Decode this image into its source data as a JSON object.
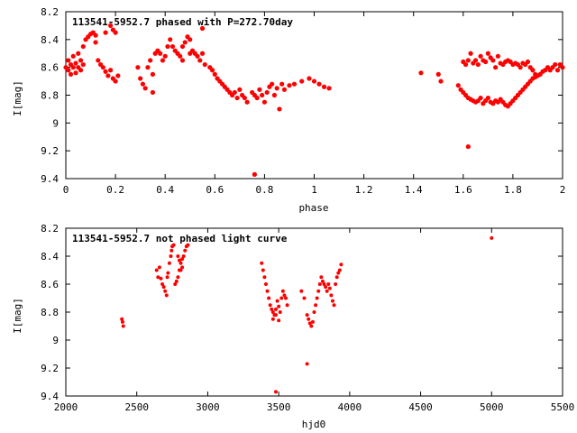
{
  "chart_data": [
    {
      "type": "scatter",
      "title": "113541-5952.7 phased with P=272.70day",
      "xlabel": "phase",
      "ylabel": "I[mag]",
      "xlim": [
        0,
        2
      ],
      "ylim": [
        8.2,
        9.4
      ],
      "y_inverted": true,
      "grid": false,
      "marker_color": "#ff0000",
      "x_ticks": [
        "0",
        "0.2",
        "0.4",
        "0.6",
        "0.8",
        "1",
        "1.2",
        "1.4",
        "1.6",
        "1.8",
        "2"
      ],
      "y_ticks": [
        "8.2",
        "8.4",
        "8.6",
        "8.8",
        "9",
        "9.2",
        "9.4"
      ],
      "x_tick_values": [
        0,
        0.2,
        0.4,
        0.6,
        0.8,
        1.0,
        1.2,
        1.4,
        1.6,
        1.8,
        2.0
      ],
      "y_tick_values": [
        8.2,
        8.4,
        8.6,
        8.8,
        9.0,
        9.2,
        9.4
      ],
      "points": [
        [
          0.0,
          8.6
        ],
        [
          0.01,
          8.62
        ],
        [
          0.01,
          8.55
        ],
        [
          0.02,
          8.58
        ],
        [
          0.02,
          8.65
        ],
        [
          0.03,
          8.6
        ],
        [
          0.03,
          8.52
        ],
        [
          0.04,
          8.57
        ],
        [
          0.04,
          8.64
        ],
        [
          0.05,
          8.6
        ],
        [
          0.05,
          8.5
        ],
        [
          0.06,
          8.55
        ],
        [
          0.06,
          8.62
        ],
        [
          0.07,
          8.58
        ],
        [
          0.07,
          8.45
        ],
        [
          0.08,
          8.4
        ],
        [
          0.09,
          8.38
        ],
        [
          0.1,
          8.36
        ],
        [
          0.11,
          8.35
        ],
        [
          0.12,
          8.37
        ],
        [
          0.12,
          8.42
        ],
        [
          0.13,
          8.55
        ],
        [
          0.14,
          8.58
        ],
        [
          0.15,
          8.6
        ],
        [
          0.16,
          8.63
        ],
        [
          0.17,
          8.66
        ],
        [
          0.18,
          8.62
        ],
        [
          0.19,
          8.68
        ],
        [
          0.2,
          8.7
        ],
        [
          0.21,
          8.66
        ],
        [
          0.16,
          8.35
        ],
        [
          0.18,
          8.3
        ],
        [
          0.19,
          8.33
        ],
        [
          0.2,
          8.35
        ],
        [
          0.29,
          8.6
        ],
        [
          0.3,
          8.68
        ],
        [
          0.31,
          8.72
        ],
        [
          0.32,
          8.75
        ],
        [
          0.33,
          8.6
        ],
        [
          0.34,
          8.55
        ],
        [
          0.35,
          8.65
        ],
        [
          0.35,
          8.78
        ],
        [
          0.36,
          8.5
        ],
        [
          0.37,
          8.48
        ],
        [
          0.38,
          8.5
        ],
        [
          0.39,
          8.55
        ],
        [
          0.4,
          8.52
        ],
        [
          0.41,
          8.45
        ],
        [
          0.42,
          8.4
        ],
        [
          0.43,
          8.45
        ],
        [
          0.44,
          8.48
        ],
        [
          0.45,
          8.5
        ],
        [
          0.46,
          8.52
        ],
        [
          0.47,
          8.55
        ],
        [
          0.47,
          8.45
        ],
        [
          0.48,
          8.42
        ],
        [
          0.49,
          8.38
        ],
        [
          0.5,
          8.4
        ],
        [
          0.5,
          8.5
        ],
        [
          0.51,
          8.48
        ],
        [
          0.52,
          8.5
        ],
        [
          0.53,
          8.52
        ],
        [
          0.54,
          8.55
        ],
        [
          0.55,
          8.5
        ],
        [
          0.55,
          8.32
        ],
        [
          0.56,
          8.58
        ],
        [
          0.58,
          8.6
        ],
        [
          0.59,
          8.62
        ],
        [
          0.6,
          8.65
        ],
        [
          0.61,
          8.68
        ],
        [
          0.62,
          8.7
        ],
        [
          0.63,
          8.72
        ],
        [
          0.64,
          8.74
        ],
        [
          0.65,
          8.76
        ],
        [
          0.66,
          8.78
        ],
        [
          0.67,
          8.8
        ],
        [
          0.68,
          8.78
        ],
        [
          0.69,
          8.82
        ],
        [
          0.7,
          8.76
        ],
        [
          0.71,
          8.8
        ],
        [
          0.72,
          8.82
        ],
        [
          0.73,
          8.85
        ],
        [
          0.75,
          8.78
        ],
        [
          0.76,
          8.8
        ],
        [
          0.77,
          8.82
        ],
        [
          0.78,
          8.76
        ],
        [
          0.79,
          8.8
        ],
        [
          0.8,
          8.85
        ],
        [
          0.81,
          8.78
        ],
        [
          0.82,
          8.74
        ],
        [
          0.83,
          8.72
        ],
        [
          0.84,
          8.8
        ],
        [
          0.85,
          8.75
        ],
        [
          0.86,
          8.9
        ],
        [
          0.87,
          8.72
        ],
        [
          0.88,
          8.76
        ],
        [
          0.9,
          8.73
        ],
        [
          0.92,
          8.72
        ],
        [
          0.95,
          8.7
        ],
        [
          0.98,
          8.68
        ],
        [
          1.0,
          8.7
        ],
        [
          1.02,
          8.72
        ],
        [
          1.04,
          8.74
        ],
        [
          1.06,
          8.75
        ],
        [
          0.76,
          9.37
        ],
        [
          1.43,
          8.64
        ],
        [
          1.5,
          8.65
        ],
        [
          1.51,
          8.7
        ],
        [
          1.62,
          9.17
        ],
        [
          1.6,
          8.56
        ],
        [
          1.61,
          8.58
        ],
        [
          1.62,
          8.55
        ],
        [
          1.63,
          8.5
        ],
        [
          1.64,
          8.57
        ],
        [
          1.65,
          8.55
        ],
        [
          1.66,
          8.58
        ],
        [
          1.67,
          8.52
        ],
        [
          1.68,
          8.55
        ],
        [
          1.69,
          8.56
        ],
        [
          1.7,
          8.5
        ],
        [
          1.71,
          8.53
        ],
        [
          1.72,
          8.55
        ],
        [
          1.73,
          8.6
        ],
        [
          1.74,
          8.52
        ],
        [
          1.75,
          8.57
        ],
        [
          1.76,
          8.58
        ],
        [
          1.77,
          8.56
        ],
        [
          1.78,
          8.55
        ],
        [
          1.79,
          8.56
        ],
        [
          1.8,
          8.58
        ],
        [
          1.81,
          8.57
        ],
        [
          1.82,
          8.58
        ],
        [
          1.83,
          8.6
        ],
        [
          1.84,
          8.57
        ],
        [
          1.85,
          8.58
        ],
        [
          1.86,
          8.56
        ],
        [
          1.87,
          8.6
        ],
        [
          1.88,
          8.62
        ],
        [
          1.89,
          8.65
        ],
        [
          1.58,
          8.73
        ],
        [
          1.59,
          8.76
        ],
        [
          1.6,
          8.78
        ],
        [
          1.61,
          8.8
        ],
        [
          1.62,
          8.82
        ],
        [
          1.63,
          8.83
        ],
        [
          1.64,
          8.84
        ],
        [
          1.65,
          8.85
        ],
        [
          1.66,
          8.84
        ],
        [
          1.67,
          8.82
        ],
        [
          1.68,
          8.86
        ],
        [
          1.69,
          8.84
        ],
        [
          1.7,
          8.82
        ],
        [
          1.71,
          8.85
        ],
        [
          1.72,
          8.86
        ],
        [
          1.73,
          8.84
        ],
        [
          1.74,
          8.85
        ],
        [
          1.75,
          8.83
        ],
        [
          1.76,
          8.85
        ],
        [
          1.77,
          8.87
        ],
        [
          1.78,
          8.88
        ],
        [
          1.79,
          8.86
        ],
        [
          1.8,
          8.84
        ],
        [
          1.81,
          8.82
        ],
        [
          1.82,
          8.8
        ],
        [
          1.83,
          8.78
        ],
        [
          1.84,
          8.76
        ],
        [
          1.85,
          8.74
        ],
        [
          1.86,
          8.72
        ],
        [
          1.87,
          8.7
        ],
        [
          1.88,
          8.68
        ],
        [
          1.89,
          8.67
        ],
        [
          1.9,
          8.66
        ],
        [
          1.91,
          8.65
        ],
        [
          1.92,
          8.63
        ],
        [
          1.93,
          8.62
        ],
        [
          1.94,
          8.6
        ],
        [
          1.95,
          8.62
        ],
        [
          1.96,
          8.6
        ],
        [
          1.97,
          8.58
        ],
        [
          1.98,
          8.62
        ],
        [
          1.99,
          8.58
        ],
        [
          2.0,
          8.6
        ]
      ]
    },
    {
      "type": "scatter",
      "title": "113541-5952.7 not phased light curve",
      "xlabel": "hjd0",
      "ylabel": "I[mag]",
      "xlim": [
        2000,
        5500
      ],
      "ylim": [
        8.2,
        9.4
      ],
      "y_inverted": true,
      "grid": false,
      "marker_color": "#ff0000",
      "x_ticks": [
        "2000",
        "2500",
        "3000",
        "3500",
        "4000",
        "4500",
        "5000",
        "5500"
      ],
      "y_ticks": [
        "8.2",
        "8.4",
        "8.6",
        "8.8",
        "9",
        "9.2",
        "9.4"
      ],
      "x_tick_values": [
        2000,
        2500,
        3000,
        3500,
        4000,
        4500,
        5000,
        5500
      ],
      "y_tick_values": [
        8.2,
        8.4,
        8.6,
        8.8,
        9.0,
        9.2,
        9.4
      ],
      "points": [
        [
          2395,
          8.85
        ],
        [
          2400,
          8.87
        ],
        [
          2405,
          8.9
        ],
        [
          2640,
          8.5
        ],
        [
          2650,
          8.55
        ],
        [
          2660,
          8.48
        ],
        [
          2670,
          8.56
        ],
        [
          2680,
          8.6
        ],
        [
          2690,
          8.62
        ],
        [
          2700,
          8.65
        ],
        [
          2710,
          8.68
        ],
        [
          2715,
          8.55
        ],
        [
          2720,
          8.52
        ],
        [
          2730,
          8.45
        ],
        [
          2740,
          8.4
        ],
        [
          2745,
          8.36
        ],
        [
          2750,
          8.33
        ],
        [
          2760,
          8.32
        ],
        [
          2770,
          8.6
        ],
        [
          2780,
          8.58
        ],
        [
          2790,
          8.55
        ],
        [
          2800,
          8.5
        ],
        [
          2810,
          8.45
        ],
        [
          2820,
          8.42
        ],
        [
          2830,
          8.4
        ],
        [
          2840,
          8.36
        ],
        [
          2850,
          8.33
        ],
        [
          2860,
          8.32
        ],
        [
          2790,
          8.4
        ],
        [
          2800,
          8.43
        ],
        [
          2810,
          8.5
        ],
        [
          2820,
          8.48
        ],
        [
          3380,
          8.45
        ],
        [
          3390,
          8.5
        ],
        [
          3400,
          8.55
        ],
        [
          3410,
          8.6
        ],
        [
          3420,
          8.65
        ],
        [
          3430,
          8.7
        ],
        [
          3440,
          8.75
        ],
        [
          3450,
          8.78
        ],
        [
          3460,
          8.8
        ],
        [
          3470,
          8.82
        ],
        [
          3480,
          8.78
        ],
        [
          3490,
          8.72
        ],
        [
          3500,
          8.76
        ],
        [
          3510,
          8.8
        ],
        [
          3520,
          8.7
        ],
        [
          3530,
          8.65
        ],
        [
          3540,
          8.68
        ],
        [
          3550,
          8.7
        ],
        [
          3560,
          8.75
        ],
        [
          3460,
          8.85
        ],
        [
          3480,
          8.82
        ],
        [
          3500,
          8.86
        ],
        [
          3480,
          9.37
        ],
        [
          3660,
          8.65
        ],
        [
          3680,
          8.7
        ],
        [
          3700,
          8.82
        ],
        [
          3710,
          8.85
        ],
        [
          3720,
          8.88
        ],
        [
          3730,
          8.9
        ],
        [
          3740,
          8.87
        ],
        [
          3750,
          8.8
        ],
        [
          3760,
          8.75
        ],
        [
          3770,
          8.7
        ],
        [
          3780,
          8.65
        ],
        [
          3790,
          8.6
        ],
        [
          3800,
          8.55
        ],
        [
          3810,
          8.58
        ],
        [
          3820,
          8.6
        ],
        [
          3830,
          8.62
        ],
        [
          3840,
          8.65
        ],
        [
          3850,
          8.6
        ],
        [
          3860,
          8.63
        ],
        [
          3870,
          8.68
        ],
        [
          3880,
          8.72
        ],
        [
          3890,
          8.75
        ],
        [
          3900,
          8.6
        ],
        [
          3910,
          8.55
        ],
        [
          3920,
          8.52
        ],
        [
          3930,
          8.5
        ],
        [
          3940,
          8.46
        ],
        [
          3700,
          9.17
        ],
        [
          5000,
          8.27
        ]
      ]
    }
  ]
}
